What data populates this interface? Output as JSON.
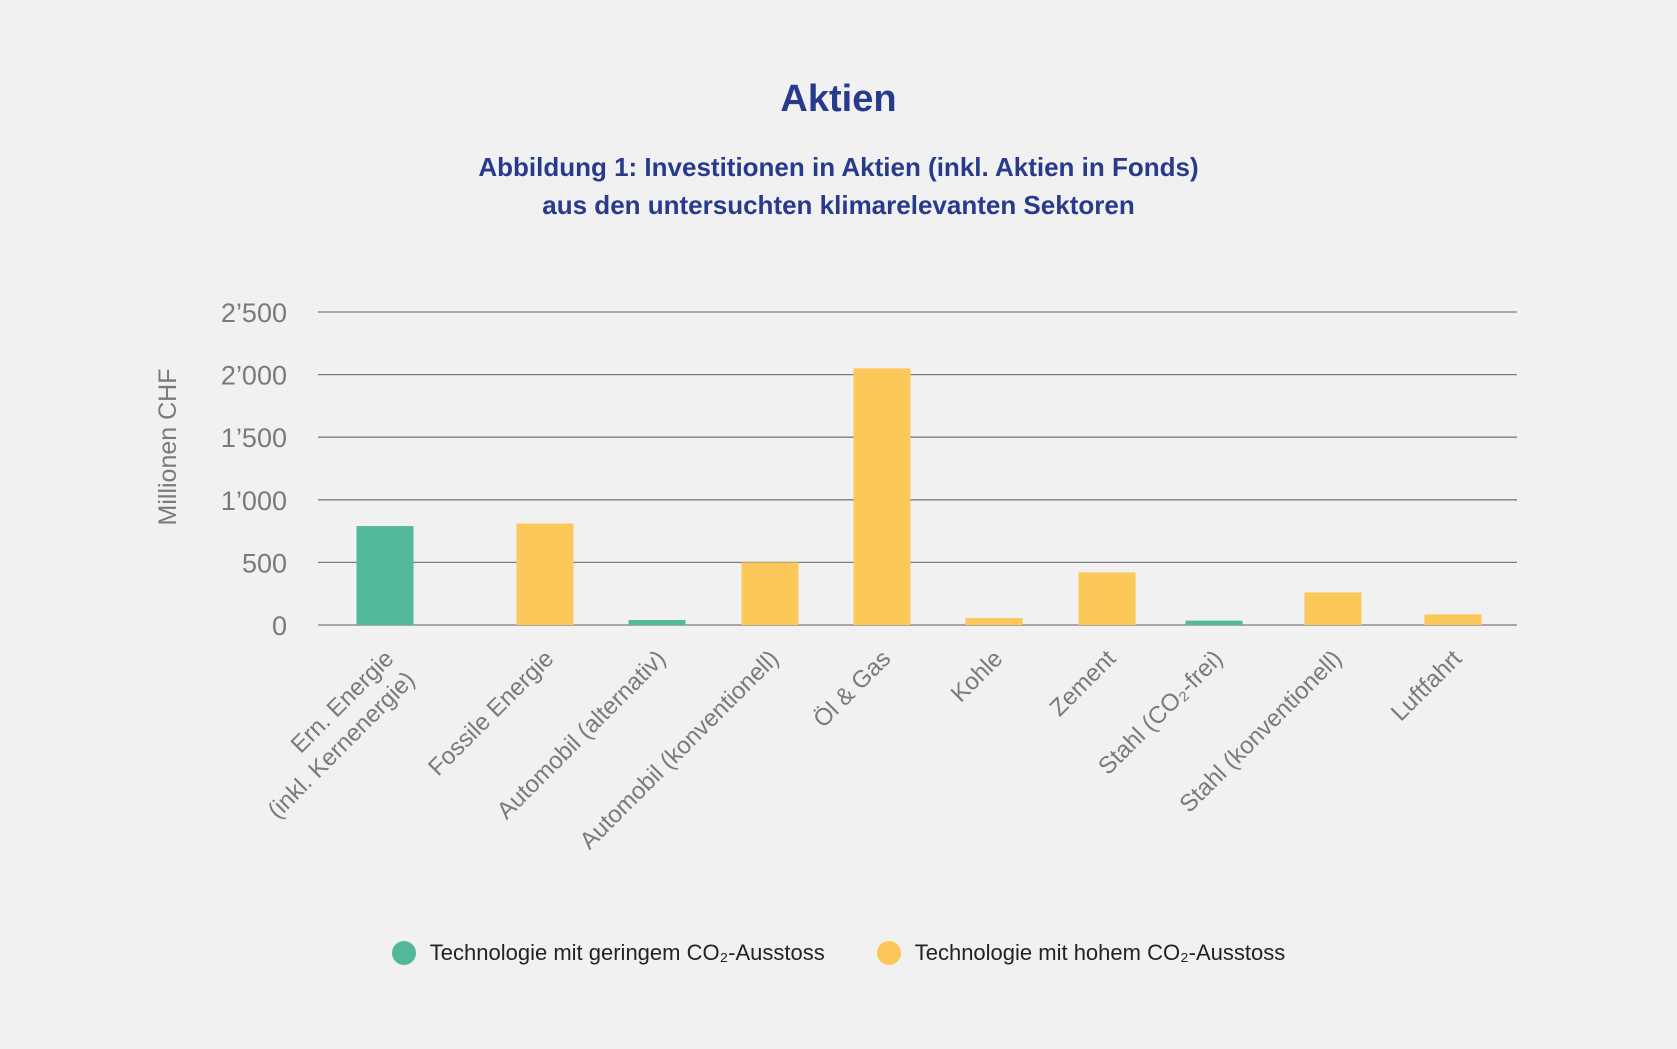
{
  "title": "Aktien",
  "subtitle_line1": "Abbildung 1: Investitionen in Aktien (inkl. Aktien in Fonds)",
  "subtitle_line2": "aus den untersuchten klimarelevanten Sektoren",
  "colors": {
    "low": "#52b99a",
    "high": "#fdc85a",
    "title": "#283a8c",
    "grid": "#7d7d7d"
  },
  "legend": [
    {
      "label": "Technologie mit geringem CO₂-Ausstoss",
      "color": "#52b99a"
    },
    {
      "label": "Technologie mit hohem CO₂-Ausstoss",
      "color": "#fdc85a"
    }
  ],
  "chart_data": {
    "type": "bar",
    "ylabel": "Millionen CHF",
    "ylim": [
      0,
      2500
    ],
    "yticks": [
      "0",
      "500",
      "1’000",
      "1’500",
      "2’000",
      "2’500"
    ],
    "grid": true,
    "legend_position": "bottom",
    "categories": [
      [
        "Ern. Energie",
        "(inkl. Kernenergie)"
      ],
      [
        "Fossile Energie"
      ],
      [
        "Automobil (alternativ)"
      ],
      [
        "Automobil (konventionell)"
      ],
      [
        "Öl & Gas"
      ],
      [
        "Kohle"
      ],
      [
        "Zement"
      ],
      [
        "Stahl (CO₂-frei)"
      ],
      [
        "Stahl (konventionell)"
      ],
      [
        "Luftfahrt"
      ]
    ],
    "values": [
      790,
      810,
      40,
      500,
      2050,
      55,
      420,
      35,
      260,
      85
    ],
    "groups": [
      "low",
      "high",
      "low",
      "high",
      "high",
      "high",
      "high",
      "low",
      "high",
      "high"
    ]
  }
}
